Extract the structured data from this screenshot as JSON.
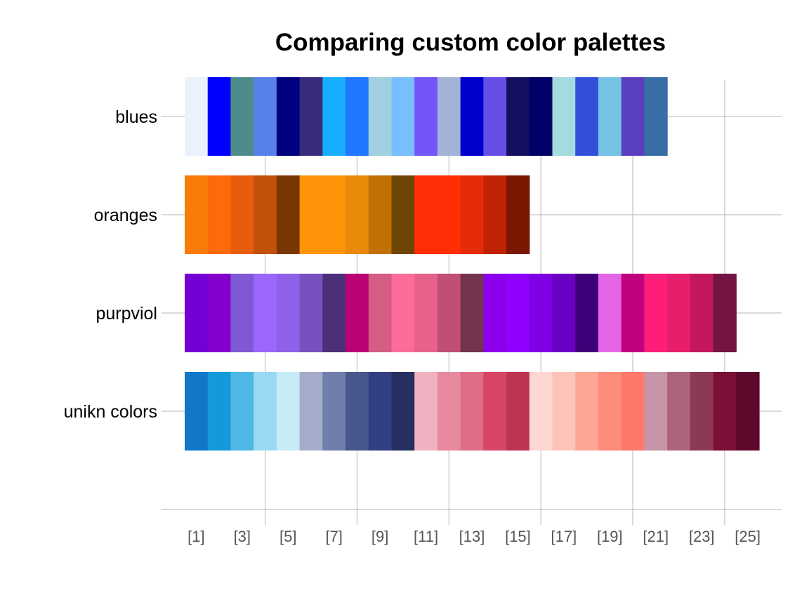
{
  "chart_data": {
    "type": "bar",
    "title": "Comparing custom color palettes",
    "xlabel": "",
    "ylabel": "",
    "x_tick_labels": [
      "[1]",
      "[3]",
      "[5]",
      "[7]",
      "[9]",
      "[11]",
      "[13]",
      "[15]",
      "[17]",
      "[19]",
      "[21]",
      "[23]",
      "[25]"
    ],
    "x_tick_values": [
      1,
      3,
      5,
      7,
      9,
      11,
      13,
      15,
      17,
      19,
      21,
      23,
      25
    ],
    "xlim": [
      0,
      26.5
    ],
    "grid": true,
    "series": [
      {
        "name": "blues",
        "colors": [
          "#eaf3fc",
          "#0000ff",
          "#4e8c8c",
          "#5780e9",
          "#000080",
          "#372c7c",
          "#18aeff",
          "#1f78ff",
          "#a2d0e1",
          "#78bfff",
          "#7455fa",
          "#a2b3d6",
          "#0000cd",
          "#674ee7",
          "#131061",
          "#000066",
          "#a3dbe0",
          "#3350dc",
          "#76c2e5",
          "#5a3fc0",
          "#386da6"
        ]
      },
      {
        "name": "oranges",
        "colors": [
          "#fb7b0a",
          "#fc6a0a",
          "#e85d0c",
          "#c2510a",
          "#7a3505",
          "#ff9409",
          "#ff9409",
          "#e98a0b",
          "#c07005",
          "#6e4505",
          "#ff2e05",
          "#ff2e05",
          "#e62b0a",
          "#bf2303",
          "#7a1703"
        ]
      },
      {
        "name": "purpviol",
        "colors": [
          "#7500d6",
          "#8400cc",
          "#7f58d6",
          "#9a66fc",
          "#8f60e8",
          "#7751bf",
          "#4a3079",
          "#ba0473",
          "#d45c85",
          "#fb6c99",
          "#e7628a",
          "#c14e74",
          "#73344d",
          "#8c00ed",
          "#8f00ff",
          "#7f00e5",
          "#6900c2",
          "#3f007a",
          "#e466e6",
          "#c0007c",
          "#fd1e7a",
          "#e71e6b",
          "#c3185e",
          "#741442"
        ]
      },
      {
        "name": "unikn colors",
        "colors": [
          "#1177c8",
          "#1499da",
          "#4fb7e6",
          "#9ad9f2",
          "#c7eaf7",
          "#a5acca",
          "#707eab",
          "#47568b",
          "#323f84",
          "#262f5f",
          "#f0b1c0",
          "#e6899e",
          "#df6b85",
          "#d74667",
          "#be3453",
          "#fed6d2",
          "#fcc3b9",
          "#fda695",
          "#fd8c7b",
          "#fd7868",
          "#c794a7",
          "#ac647b",
          "#8d3956",
          "#7c0f37",
          "#5e092c"
        ]
      }
    ]
  }
}
